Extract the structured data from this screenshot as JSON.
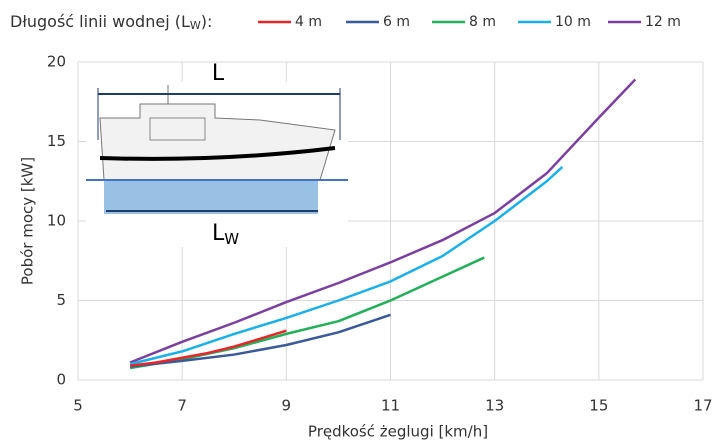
{
  "chart_data": {
    "type": "line",
    "legend_title": [
      "Długość linii wodnej (L",
      "W",
      "):"
    ],
    "x_label": "Prędkość żeglugi [km/h]",
    "y_label": "Pobór mocy [kW]",
    "xlim": [
      5,
      17
    ],
    "xticks": [
      5,
      7,
      9,
      11,
      13,
      15,
      17
    ],
    "ylim": [
      0,
      20
    ],
    "yticks": [
      0,
      5,
      10,
      15,
      20
    ],
    "grid": true,
    "legend": "top",
    "inset_labels": [
      "L",
      [
        "L",
        "W"
      ]
    ],
    "series": [
      {
        "name": "4 m",
        "color": "#e8262a",
        "x": [
          6,
          6.5,
          7,
          7.5,
          8,
          8.5,
          9
        ],
        "values": [
          0.9,
          1.1,
          1.4,
          1.7,
          2.1,
          2.6,
          3.1
        ]
      },
      {
        "name": "6 m",
        "color": "#3a5a9a",
        "x": [
          6,
          7,
          8,
          9,
          10,
          11
        ],
        "values": [
          0.85,
          1.2,
          1.6,
          2.2,
          3.0,
          4.1
        ]
      },
      {
        "name": "8 m",
        "color": "#22b05a",
        "x": [
          6,
          7,
          8,
          9,
          10,
          11,
          12,
          12.8
        ],
        "values": [
          0.75,
          1.3,
          2.0,
          2.9,
          3.7,
          5.0,
          6.5,
          7.7
        ]
      },
      {
        "name": "10 m",
        "color": "#1ab0ea",
        "x": [
          6,
          7,
          8,
          9,
          10,
          11,
          12,
          13,
          14,
          14.3
        ],
        "values": [
          1.0,
          1.8,
          2.9,
          3.9,
          5.0,
          6.2,
          7.8,
          10.0,
          12.5,
          13.4
        ]
      },
      {
        "name": "12 m",
        "color": "#7b3fa0",
        "x": [
          6,
          7,
          8,
          9,
          10,
          11,
          12,
          13,
          14,
          15,
          15.7
        ],
        "values": [
          1.1,
          2.4,
          3.6,
          4.9,
          6.1,
          7.4,
          8.8,
          10.5,
          13.0,
          16.5,
          18.9
        ]
      }
    ]
  }
}
